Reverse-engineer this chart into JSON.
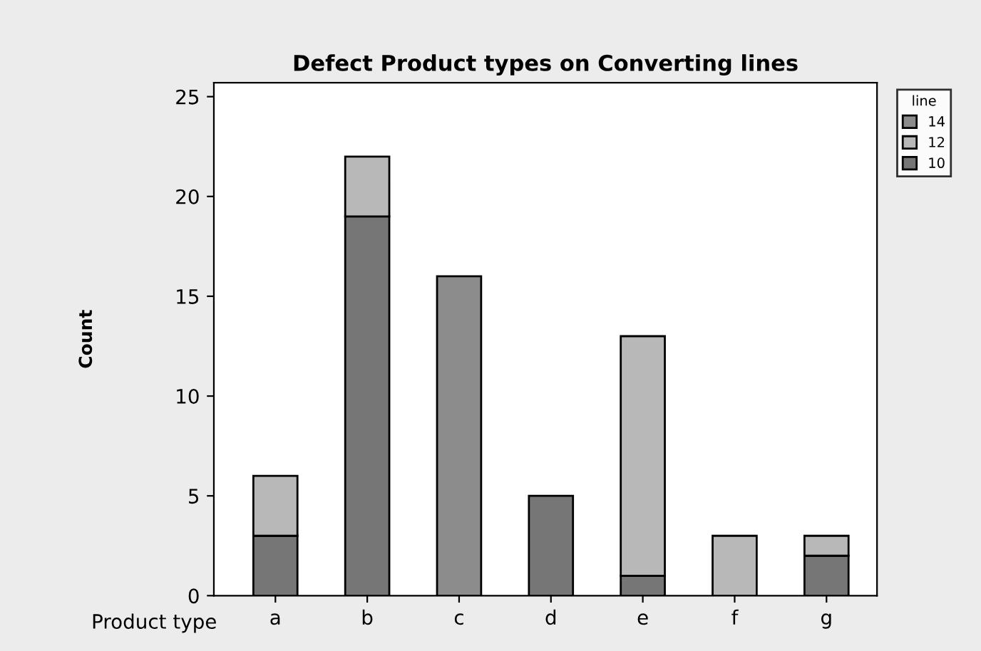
{
  "chart_data": {
    "type": "bar",
    "title": "Defect Product types on Converting lines",
    "xlabel": "Product type",
    "ylabel": "Count",
    "legend_title": "line",
    "stacked": true,
    "legend": "top right",
    "categories": [
      "a",
      "b",
      "c",
      "d",
      "e",
      "f",
      "g"
    ],
    "series": [
      {
        "name": "10",
        "color": "#767676",
        "values": [
          3,
          19,
          0,
          5,
          1,
          0,
          2
        ]
      },
      {
        "name": "12",
        "color": "#b8b8b8",
        "values": [
          3,
          3,
          0,
          0,
          12,
          3,
          1
        ]
      },
      {
        "name": "14",
        "color": "#8c8c8c",
        "values": [
          0,
          0,
          16,
          0,
          0,
          0,
          0
        ]
      }
    ],
    "ylim": [
      0,
      25.7
    ],
    "yticks": [
      0,
      5,
      10,
      15,
      20,
      25
    ],
    "grid": false
  }
}
